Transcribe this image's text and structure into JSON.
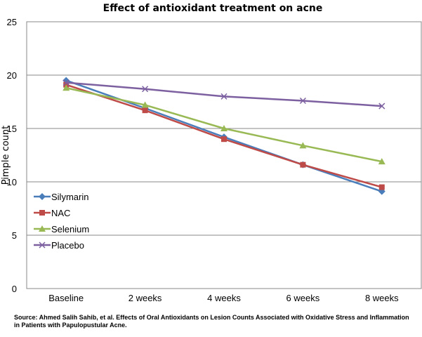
{
  "chart_data": {
    "type": "line",
    "title": "Effect of antioxidant treatment on acne",
    "ylabel": "Pimple count",
    "xlabel": "",
    "categories": [
      "Baseline",
      "2 weeks",
      "4 weeks",
      "6 weeks",
      "8 weeks"
    ],
    "ylim": [
      0,
      25
    ],
    "yticks": [
      "0",
      "5",
      "10",
      "15",
      "20",
      "25"
    ],
    "grid": "horizontal",
    "legend_position": "left-inside",
    "series": [
      {
        "name": "Silymarin",
        "values": [
          19.5,
          16.9,
          14.2,
          11.6,
          9.1
        ],
        "color": "#4A7EBB",
        "marker": "diamond"
      },
      {
        "name": "NAC",
        "values": [
          19.1,
          16.7,
          14.0,
          11.6,
          9.5
        ],
        "color": "#BE4B48",
        "marker": "square"
      },
      {
        "name": "Selenium",
        "values": [
          18.8,
          17.2,
          15.0,
          13.4,
          11.9
        ],
        "color": "#98B954",
        "marker": "triangle"
      },
      {
        "name": "Placebo",
        "values": [
          19.3,
          18.7,
          18.0,
          17.6,
          17.1
        ],
        "color": "#7D60A0",
        "marker": "x"
      }
    ]
  },
  "source_note": "Source: Ahmed Salih Sahib, et al. Effects of Oral Antioxidants on Lesion Counts Associated with Oxidative Stress and Inflammation in Patients with Papulopustular Acne."
}
